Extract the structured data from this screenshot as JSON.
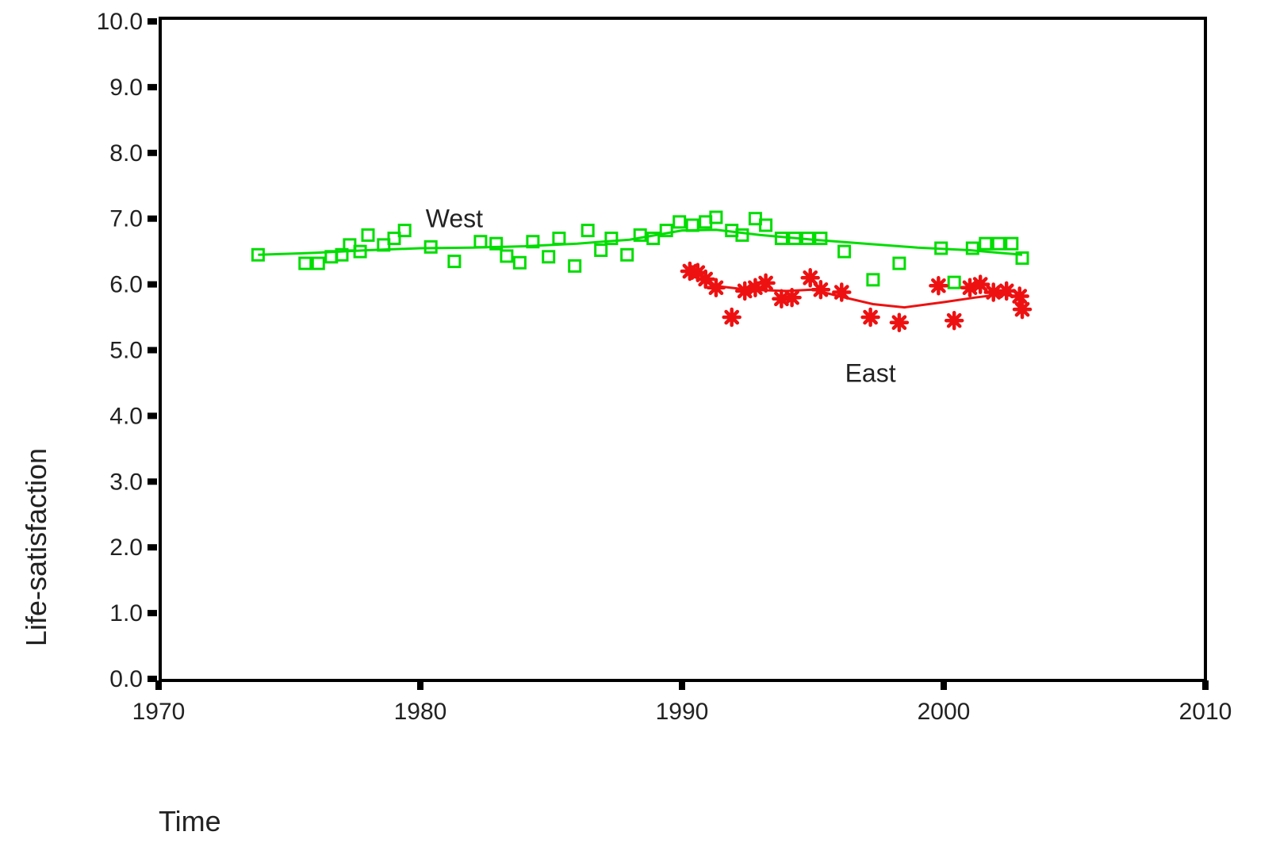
{
  "chart_data": {
    "type": "scatter",
    "xlabel": "Time",
    "ylabel": "Life-satisfaction",
    "xlim": [
      1970,
      2010
    ],
    "ylim": [
      0,
      10
    ],
    "x_ticks": [
      "1970",
      "1980",
      "1990",
      "2000",
      "2010"
    ],
    "y_ticks": [
      "0.0",
      "1.0",
      "2.0",
      "3.0",
      "4.0",
      "5.0",
      "6.0",
      "7.0",
      "8.0",
      "9.0",
      "10.0"
    ],
    "grid": false,
    "legend": "none",
    "annotations": [
      {
        "text": "West",
        "x": 1981.3,
        "y": 7.0
      },
      {
        "text": "East",
        "x": 1997.2,
        "y": 4.65
      }
    ],
    "series": [
      {
        "name": "West",
        "color": "#00dd00",
        "marker": "square",
        "points": [
          [
            1973.8,
            6.45
          ],
          [
            1975.6,
            6.32
          ],
          [
            1976.1,
            6.32
          ],
          [
            1976.6,
            6.42
          ],
          [
            1977.0,
            6.45
          ],
          [
            1977.3,
            6.6
          ],
          [
            1977.7,
            6.5
          ],
          [
            1978.0,
            6.75
          ],
          [
            1978.6,
            6.6
          ],
          [
            1979.0,
            6.7
          ],
          [
            1979.4,
            6.82
          ],
          [
            1980.4,
            6.57
          ],
          [
            1981.3,
            6.35
          ],
          [
            1982.3,
            6.65
          ],
          [
            1982.9,
            6.62
          ],
          [
            1983.3,
            6.43
          ],
          [
            1983.8,
            6.33
          ],
          [
            1984.3,
            6.65
          ],
          [
            1984.9,
            6.42
          ],
          [
            1985.3,
            6.7
          ],
          [
            1985.9,
            6.28
          ],
          [
            1986.4,
            6.82
          ],
          [
            1986.9,
            6.52
          ],
          [
            1987.3,
            6.7
          ],
          [
            1987.9,
            6.45
          ],
          [
            1988.4,
            6.75
          ],
          [
            1988.9,
            6.7
          ],
          [
            1989.4,
            6.82
          ],
          [
            1989.9,
            6.95
          ],
          [
            1990.4,
            6.9
          ],
          [
            1990.9,
            6.95
          ],
          [
            1991.3,
            7.02
          ],
          [
            1991.9,
            6.82
          ],
          [
            1992.3,
            6.75
          ],
          [
            1992.8,
            7.0
          ],
          [
            1993.2,
            6.9
          ],
          [
            1993.8,
            6.7
          ],
          [
            1994.3,
            6.7
          ],
          [
            1994.8,
            6.7
          ],
          [
            1995.3,
            6.7
          ],
          [
            1996.2,
            6.5
          ],
          [
            1997.3,
            6.07
          ],
          [
            1998.3,
            6.32
          ],
          [
            1999.9,
            6.55
          ],
          [
            2000.4,
            6.03
          ],
          [
            2001.1,
            6.55
          ],
          [
            2001.6,
            6.62
          ],
          [
            2002.1,
            6.62
          ],
          [
            2002.6,
            6.62
          ],
          [
            2003.0,
            6.4
          ]
        ],
        "trend": [
          [
            1973.8,
            6.45
          ],
          [
            1976.0,
            6.48
          ],
          [
            1978.0,
            6.52
          ],
          [
            1980.0,
            6.55
          ],
          [
            1982.0,
            6.56
          ],
          [
            1984.0,
            6.58
          ],
          [
            1986.0,
            6.62
          ],
          [
            1988.0,
            6.68
          ],
          [
            1990.0,
            6.82
          ],
          [
            1991.3,
            6.83
          ],
          [
            1993.0,
            6.75
          ],
          [
            1995.0,
            6.68
          ],
          [
            1997.0,
            6.62
          ],
          [
            1999.0,
            6.56
          ],
          [
            2001.0,
            6.52
          ],
          [
            2003.0,
            6.45
          ]
        ]
      },
      {
        "name": "East",
        "color": "#ee1111",
        "marker": "asterisk",
        "points": [
          [
            1990.3,
            6.2
          ],
          [
            1990.6,
            6.18
          ],
          [
            1990.9,
            6.08
          ],
          [
            1991.3,
            5.95
          ],
          [
            1991.9,
            5.5
          ],
          [
            1992.4,
            5.9
          ],
          [
            1992.8,
            5.95
          ],
          [
            1993.2,
            6.02
          ],
          [
            1993.8,
            5.78
          ],
          [
            1994.2,
            5.8
          ],
          [
            1994.9,
            6.1
          ],
          [
            1995.3,
            5.92
          ],
          [
            1996.1,
            5.88
          ],
          [
            1997.2,
            5.5
          ],
          [
            1998.3,
            5.42
          ],
          [
            1999.8,
            5.98
          ],
          [
            2000.4,
            5.45
          ],
          [
            2001.0,
            5.95
          ],
          [
            2001.4,
            6.0
          ],
          [
            2001.9,
            5.88
          ],
          [
            2002.4,
            5.9
          ],
          [
            2002.9,
            5.82
          ],
          [
            2003.0,
            5.62
          ]
        ],
        "trend": [
          [
            1990.3,
            6.15
          ],
          [
            1991.2,
            5.98
          ],
          [
            1992.5,
            5.92
          ],
          [
            1994.0,
            5.9
          ],
          [
            1995.0,
            5.92
          ],
          [
            1996.0,
            5.82
          ],
          [
            1997.3,
            5.7
          ],
          [
            1998.5,
            5.65
          ],
          [
            2000.0,
            5.73
          ],
          [
            2001.2,
            5.8
          ],
          [
            2002.2,
            5.85
          ],
          [
            2003.0,
            5.8
          ]
        ]
      }
    ]
  }
}
